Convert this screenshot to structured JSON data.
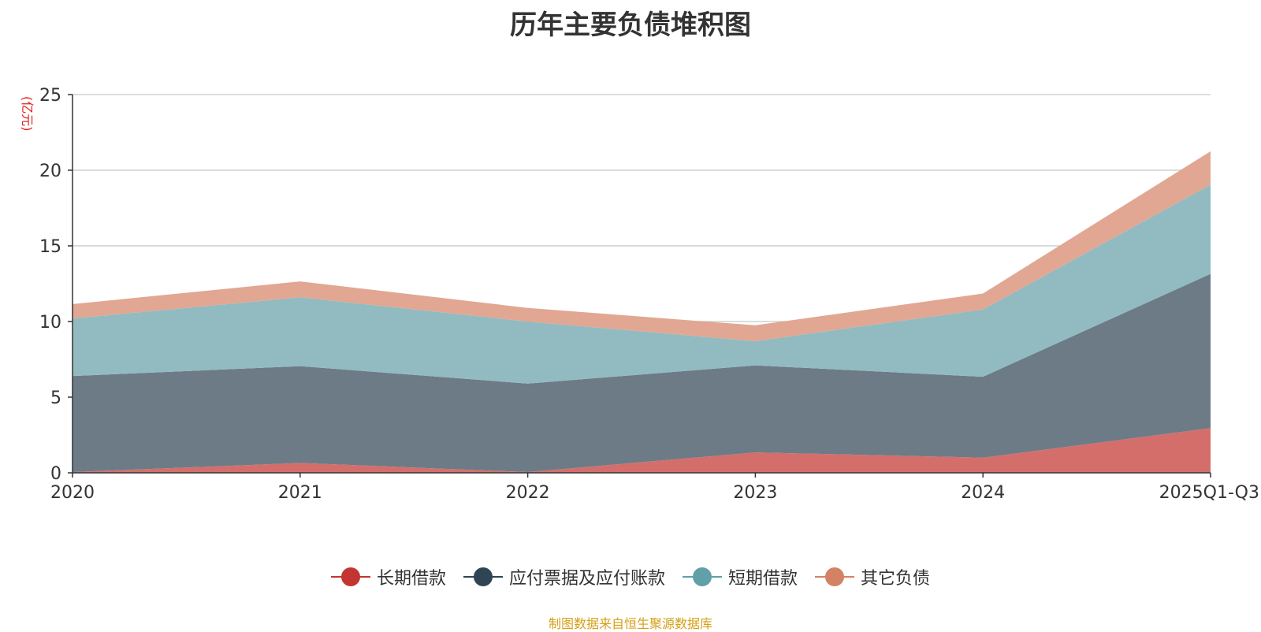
{
  "chart_data": {
    "type": "area",
    "stacked": true,
    "title": "历年主要负债堆积图",
    "ylabel": "(亿元)",
    "xlabel": "",
    "ylim": [
      0,
      25
    ],
    "yticks": [
      0,
      5,
      10,
      15,
      20,
      25
    ],
    "categories": [
      "2020",
      "2021",
      "2022",
      "2023",
      "2024",
      "2025Q1-Q3"
    ],
    "series": [
      {
        "name": "长期借款",
        "color": "#c23531",
        "fill": "#d46e6b",
        "values": [
          0.05,
          0.65,
          0.05,
          1.35,
          1.0,
          2.95
        ]
      },
      {
        "name": "应付票据及应付账款",
        "color": "#2f4554",
        "fill": "#6d7b86",
        "values": [
          6.35,
          6.4,
          5.85,
          5.75,
          5.35,
          10.2
        ]
      },
      {
        "name": "短期借款",
        "color": "#61a0a8",
        "fill": "#92bbc1",
        "values": [
          3.8,
          4.55,
          4.1,
          1.6,
          4.45,
          5.9
        ]
      },
      {
        "name": "其它负债",
        "color": "#d48265",
        "fill": "#e1a792",
        "values": [
          0.95,
          1.05,
          0.9,
          1.05,
          1.05,
          2.2
        ]
      }
    ],
    "legend_position": "bottom-center",
    "grid": true
  },
  "footer": "制图数据来自恒生聚源数据库"
}
